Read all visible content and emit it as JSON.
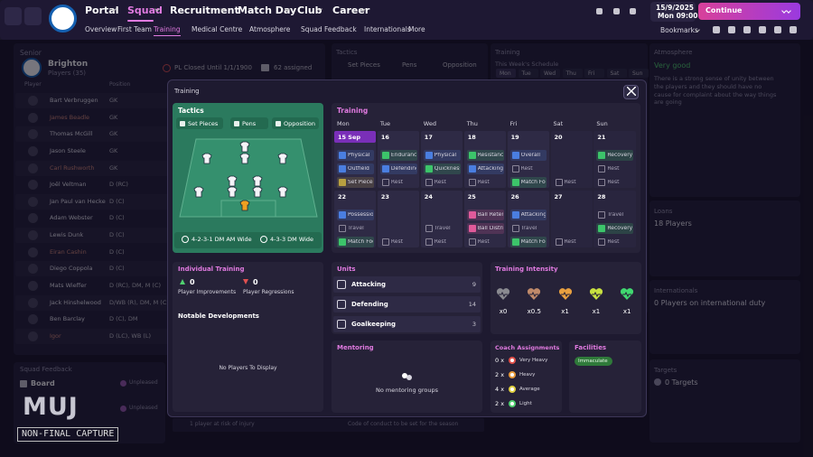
{
  "nav": {
    "menu": [
      "Portal",
      "Squad",
      "Recruitment",
      "Match Day",
      "Club",
      "Career"
    ],
    "submenu": [
      "Overview",
      "First Team",
      "Training",
      "Medical Centre",
      "Atmosphere",
      "Squad Feedback",
      "Internationals",
      "More"
    ],
    "date": "15/9/2025",
    "time": "Mon 09:00",
    "continue": "Continue",
    "bookmarks": "Bookmarks"
  },
  "background": {
    "senior": {
      "title": "Senior",
      "club": "Brighton",
      "players": "Players (35)",
      "status": "PL Closed Until 1/1/1900",
      "assigned": "62 assigned",
      "columns": [
        "Player",
        "Position"
      ],
      "rows": [
        [
          "Bart Verbruggen",
          "GK"
        ],
        [
          "James Beadle",
          "GK"
        ],
        [
          "Thomas McGill",
          "GK"
        ],
        [
          "Jason Steele",
          "GK"
        ],
        [
          "Carl Rushworth",
          "GK"
        ],
        [
          "Joël Veltman",
          "D (RC)"
        ],
        [
          "Jan Paul van Hecke",
          "D (C)"
        ],
        [
          "Adam Webster",
          "D (C)"
        ],
        [
          "Lewis Dunk",
          "D (C)"
        ],
        [
          "Eiran Cashin",
          "D (C)"
        ],
        [
          "Diego Coppola",
          "D (C)"
        ],
        [
          "Mats Wieffer",
          "D (RC), DM, M (C)"
        ],
        [
          "Jack Hinshelwood",
          "D/WB (R), DM, M (C)"
        ],
        [
          "Ben Barclay",
          "D (C), DM"
        ],
        [
          "Igor",
          "D (LC), WB (L)"
        ]
      ]
    },
    "squad_feedback": {
      "title": "Squad Feedback",
      "board": "Board",
      "status": [
        "Unpleased",
        "Unpleased"
      ]
    },
    "tactics": {
      "title": "Tactics",
      "tabs": [
        "Set Pieces",
        "Pens",
        "Opposition"
      ]
    },
    "training": {
      "title": "Training",
      "subtitle": "This Week's Schedule",
      "days": [
        "Mon",
        "Tue",
        "Wed",
        "Thu",
        "Fri",
        "Sat",
        "Sun"
      ]
    },
    "atmosphere": {
      "title": "Atmosphere",
      "status": "Very good",
      "text": "There is a strong sense of unity between the players and they should have no cause for complaint about the way things are going"
    },
    "loans": {
      "title": "Loans",
      "text": "18 Players"
    },
    "internationals": {
      "title": "Internationals",
      "text": "0 Players on international duty"
    },
    "targets": {
      "title": "Targets",
      "text": "0 Targets"
    },
    "footer": [
      "1 player at risk of injury",
      "Code of conduct to be set for the season"
    ]
  },
  "modal": {
    "title": "Training",
    "tactics": {
      "title": "Tactics",
      "tabs": [
        "Set Pieces",
        "Pens",
        "Opposition"
      ],
      "formations": [
        "4-2-3-1 DM AM Wide",
        "4-3-3 DM Wide"
      ]
    },
    "schedule": {
      "title": "Training",
      "days": [
        "Mon",
        "Tue",
        "Wed",
        "Thu",
        "Fri",
        "Sat",
        "Sun"
      ],
      "weeks": [
        {
          "dates": [
            "15 Sep",
            "16",
            "17",
            "18",
            "19",
            "20",
            "21"
          ],
          "sessions": [
            [
              {
                "name": "Physical",
                "color": "#4a7ee0"
              },
              {
                "name": "Outfield",
                "color": "#4a7ee0"
              },
              {
                "name": "Set Pieces",
                "color": "#b8a040"
              }
            ],
            [
              {
                "name": "Endurance",
                "color": "#3cc46a"
              },
              {
                "name": "Defending",
                "color": "#4a7ee0"
              },
              {
                "name": "Rest",
                "color": "#8a8598"
              }
            ],
            [
              {
                "name": "Physical",
                "color": "#4a7ee0"
              },
              {
                "name": "Quickness",
                "color": "#3cc46a"
              },
              {
                "name": "Rest",
                "color": "#8a8598"
              }
            ],
            [
              {
                "name": "Resistance",
                "color": "#3cc46a"
              },
              {
                "name": "Attacking",
                "color": "#4a7ee0"
              },
              {
                "name": "Rest",
                "color": "#8a8598"
              }
            ],
            [
              {
                "name": "Overall",
                "color": "#4a7ee0"
              },
              {
                "name": "Rest",
                "color": "#8a8598"
              },
              {
                "name": "Match Focus",
                "color": "#3cc46a"
              }
            ],
            [
              {
                "name": "Rest",
                "color": "#8a8598"
              }
            ],
            [
              {
                "name": "Recovery",
                "color": "#3cc46a"
              },
              {
                "name": "Rest",
                "color": "#8a8598"
              },
              {
                "name": "Rest",
                "color": "#8a8598"
              }
            ]
          ]
        },
        {
          "dates": [
            "22",
            "23",
            "24",
            "25",
            "26",
            "27",
            "28"
          ],
          "sessions": [
            [
              {
                "name": "Possession",
                "color": "#4a7ee0"
              },
              {
                "name": "Travel",
                "color": "#8a8598"
              },
              {
                "name": "Match Focus",
                "color": "#3cc46a"
              }
            ],
            [
              {
                "name": "Rest",
                "color": "#8a8598"
              }
            ],
            [
              {
                "name": "Travel",
                "color": "#8a8598"
              },
              {
                "name": "Rest",
                "color": "#8a8598"
              }
            ],
            [
              {
                "name": "Ball Retention",
                "color": "#e05a9a"
              },
              {
                "name": "Ball Distribution",
                "color": "#e05a9a"
              },
              {
                "name": "Rest",
                "color": "#8a8598"
              }
            ],
            [
              {
                "name": "Attacking",
                "color": "#4a7ee0"
              },
              {
                "name": "Travel",
                "color": "#8a8598"
              },
              {
                "name": "Match Focus",
                "color": "#3cc46a"
              }
            ],
            [
              {
                "name": "Rest",
                "color": "#8a8598"
              }
            ],
            [
              {
                "name": "Travel",
                "color": "#8a8598"
              },
              {
                "name": "Recovery",
                "color": "#3cc46a"
              },
              {
                "name": "Rest",
                "color": "#8a8598"
              }
            ]
          ]
        }
      ]
    },
    "individual": {
      "title": "Individual Training",
      "improvements": {
        "value": 0,
        "label": "Player Improvements"
      },
      "regressions": {
        "value": 0,
        "label": "Player Regressions"
      },
      "developments": "Notable Developments",
      "empty": "No Players To Display"
    },
    "units": {
      "title": "Units",
      "rows": [
        {
          "name": "Attacking",
          "count": 9
        },
        {
          "name": "Defending",
          "count": 14
        },
        {
          "name": "Goalkeeping",
          "count": 3
        }
      ]
    },
    "intensity": {
      "title": "Training Intensity",
      "levels": [
        {
          "label": "x0",
          "color": "#8a8a90"
        },
        {
          "label": "x0.5",
          "color": "#c08a6a"
        },
        {
          "label": "x1",
          "color": "#e8a040"
        },
        {
          "label": "x1",
          "color": "#c8e040"
        },
        {
          "label": "x1",
          "color": "#40d870"
        }
      ]
    },
    "mentoring": {
      "title": "Mentoring",
      "empty": "No mentoring groups"
    },
    "coaches": {
      "title": "Coach Assignments",
      "rows": [
        {
          "count": "0 x",
          "label": "Very Heavy",
          "color": "#e0504a"
        },
        {
          "count": "2 x",
          "label": "Heavy",
          "color": "#e89a3a"
        },
        {
          "count": "4 x",
          "label": "Average",
          "color": "#e0d040"
        },
        {
          "count": "2 x",
          "label": "Light",
          "color": "#50d070"
        }
      ]
    },
    "facilities": {
      "title": "Facilities",
      "status": "Immaculate"
    }
  },
  "watermark": {
    "logo": "MUJ",
    "caption": "NON-FINAL CAPTURE"
  }
}
